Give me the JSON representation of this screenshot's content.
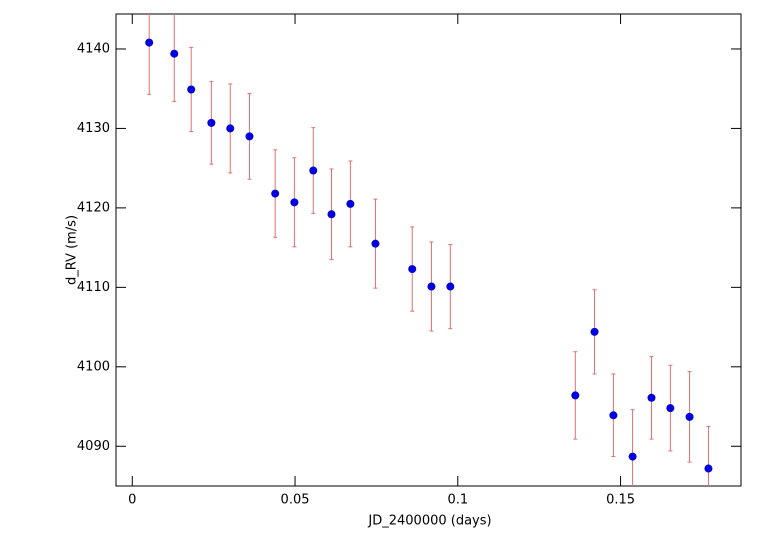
{
  "chart_data": {
    "type": "scatter",
    "xlabel": "JD_2400000 (days)",
    "ylabel": "d_RV (m/s)",
    "series": [
      {
        "color": "#0000dd",
        "error_color": "#e07070",
        "x": [
          0.0052,
          0.0129,
          0.0181,
          0.0243,
          0.0301,
          0.036,
          0.0439,
          0.0498,
          0.0556,
          0.0612,
          0.067,
          0.0747,
          0.086,
          0.0919,
          0.0977,
          0.1361,
          0.142,
          0.1478,
          0.1537,
          0.1595,
          0.1653,
          0.1712,
          0.177
        ],
        "values": [
          4140.8,
          4139.4,
          4134.9,
          4130.7,
          4130.0,
          4129.0,
          4121.8,
          4120.7,
          4124.7,
          4119.2,
          4120.5,
          4115.5,
          4112.3,
          4110.1,
          4110.1,
          4096.4,
          4104.4,
          4093.9,
          4088.7,
          4096.1,
          4094.8,
          4093.7,
          4087.2
        ],
        "errors": [
          6.5,
          6.0,
          5.3,
          5.2,
          5.6,
          5.4,
          5.5,
          5.6,
          5.4,
          5.7,
          5.4,
          5.6,
          5.3,
          5.6,
          5.3,
          5.5,
          5.3,
          5.2,
          5.9,
          5.2,
          5.4,
          5.7,
          5.3
        ]
      }
    ],
    "xlim": [
      -0.005,
      0.187
    ],
    "ylim": [
      4085.0,
      4144.4
    ],
    "xticks": [
      0,
      0.05,
      0.1,
      0.15
    ],
    "yticks": [
      4090,
      4100,
      4110,
      4120,
      4130,
      4140
    ]
  }
}
